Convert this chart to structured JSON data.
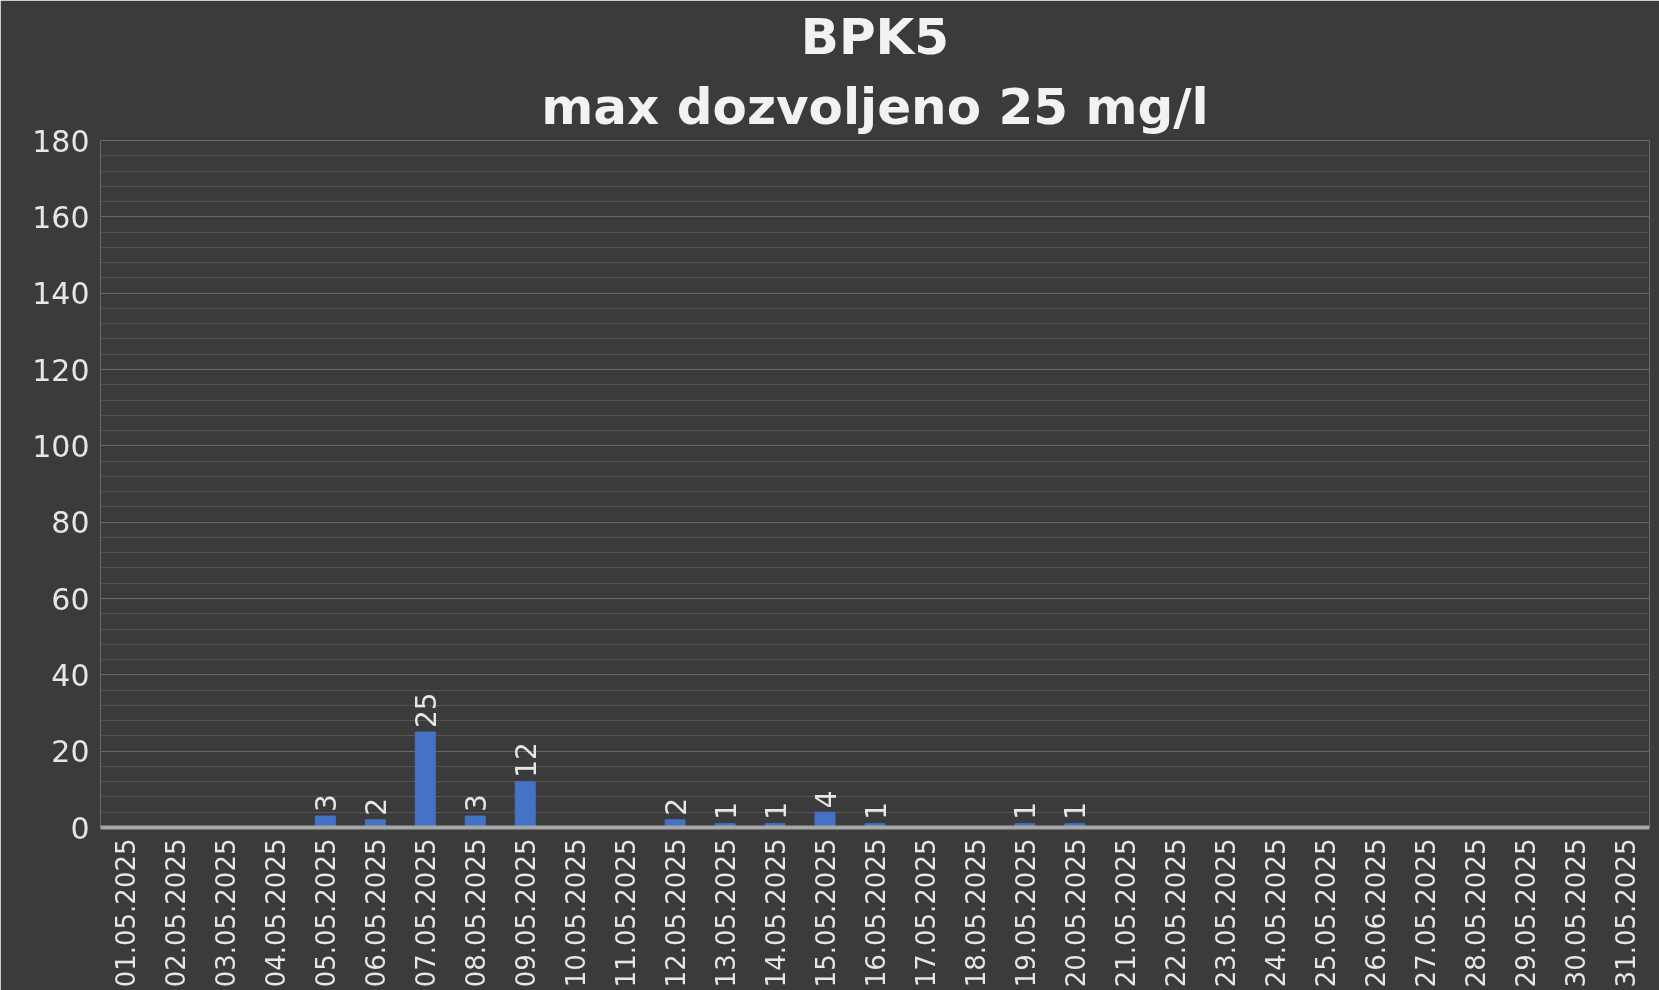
{
  "chart_data": {
    "type": "bar",
    "title": "BPK5",
    "subtitle": "max dozvoljeno 25 mg/l",
    "categories": [
      "01.05.2025",
      "02.05.2025",
      "03.05.2025",
      "04.05.2025",
      "05.05.2025",
      "06.05.2025",
      "07.05.2025",
      "08.05.2025",
      "09.05.2025",
      "10.05.2025",
      "11.05.2025",
      "12.05.2025",
      "13.05.2025",
      "14.05.2025",
      "15.05.2025",
      "16.05.2025",
      "17.05.2025",
      "18.05.2025",
      "19.05.2025",
      "20.05.2025",
      "21.05.2025",
      "22.05.2025",
      "23.05.2025",
      "24.05.2025",
      "25.05.2025",
      "26.06.2025",
      "27.05.2025",
      "28.05.2025",
      "29.05.2025",
      "30.05.2025",
      "31.05.2025"
    ],
    "values": [
      null,
      null,
      null,
      null,
      3,
      2,
      25,
      3,
      12,
      null,
      null,
      2,
      1,
      1,
      4,
      1,
      null,
      null,
      1,
      1,
      null,
      null,
      null,
      null,
      null,
      null,
      null,
      null,
      null,
      null,
      null
    ],
    "color": "#4472c4",
    "ylim": [
      0,
      180
    ],
    "yticks": [
      0,
      20,
      40,
      60,
      80,
      100,
      120,
      140,
      160,
      180
    ],
    "grid": "y",
    "data_labels": true
  }
}
